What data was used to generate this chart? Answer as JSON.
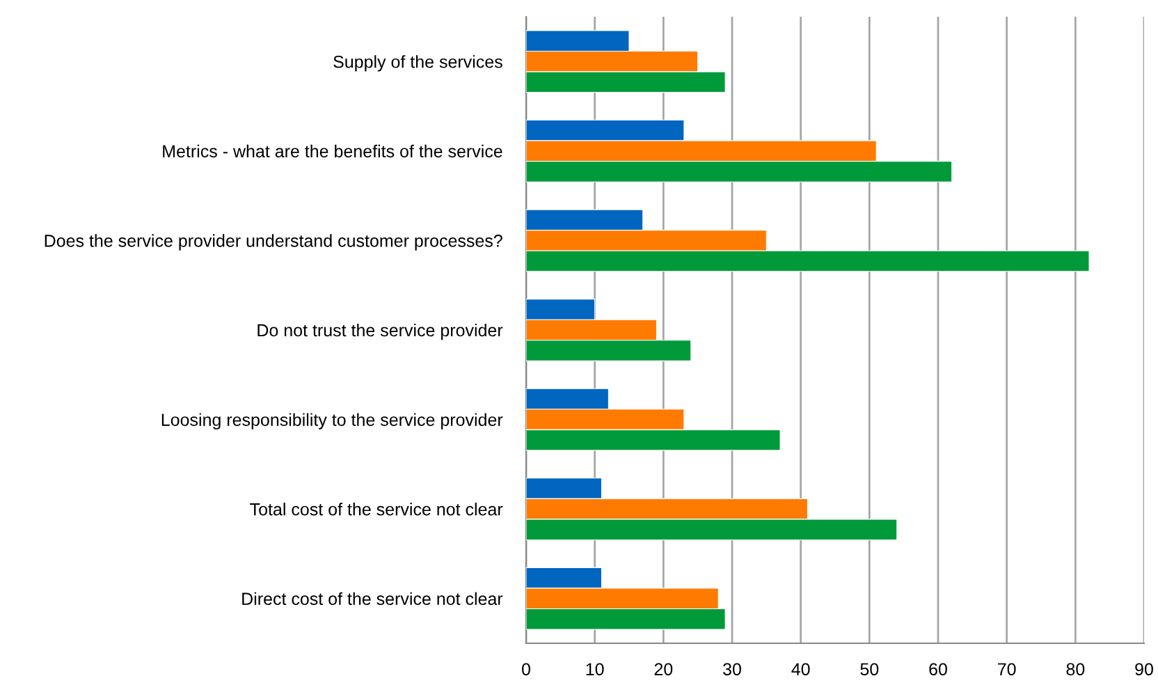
{
  "chart_data": {
    "type": "bar",
    "orientation": "horizontal",
    "categories": [
      "Supply of the services",
      "Metrics - what are the benefits of the service",
      "Does the service provider understand customer processes?",
      "Do not trust the service provider",
      "Loosing responsibility to the service provider",
      "Total cost of the service not clear",
      "Direct cost of the service not clear"
    ],
    "series": [
      {
        "color": "#0066bf",
        "values": [
          15,
          23,
          17,
          10,
          12,
          11,
          11
        ]
      },
      {
        "color": "#ff7a00",
        "values": [
          25,
          51,
          35,
          19,
          23,
          41,
          28
        ]
      },
      {
        "color": "#009a3a",
        "values": [
          29,
          62,
          82,
          24,
          37,
          54,
          29
        ]
      }
    ],
    "xlim": [
      0,
      90
    ],
    "xticks": [
      0,
      10,
      20,
      30,
      40,
      50,
      60,
      70,
      80,
      90
    ],
    "grid": "x",
    "legend": false
  }
}
